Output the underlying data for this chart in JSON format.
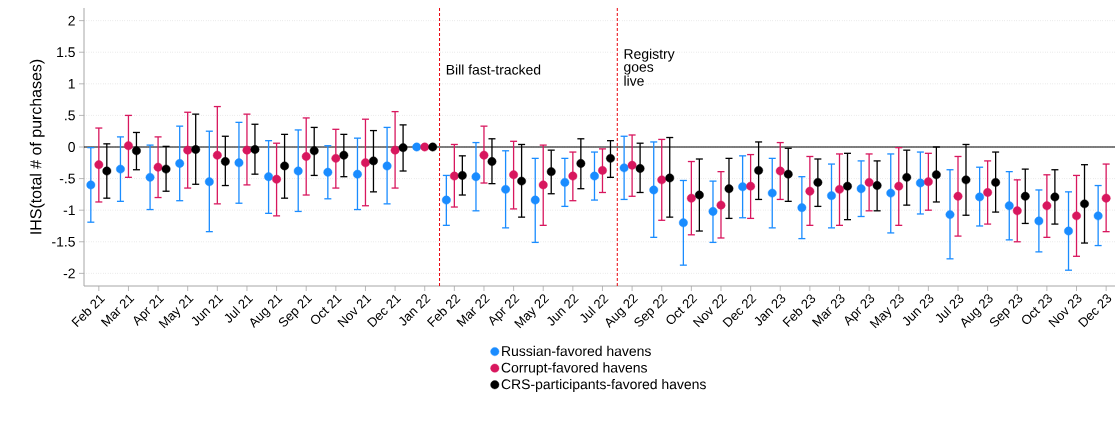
{
  "chart_data": {
    "type": "scatter",
    "ylabel": "IHS(total # of purchases)",
    "categories": [
      "Feb 21",
      "Mar 21",
      "Apr 21",
      "May 21",
      "Jun 21",
      "Jul 21",
      "Aug 21",
      "Sep 21",
      "Oct 21",
      "Nov 21",
      "Dec 21",
      "Jan 22",
      "Feb 22",
      "Mar 22",
      "Apr 22",
      "May 22",
      "Jun 22",
      "Jul 22",
      "Aug 22",
      "Sep 22",
      "Oct 22",
      "Nov 22",
      "Dec 22",
      "Jan 23",
      "Feb 23",
      "Mar 23",
      "Apr 23",
      "May 23",
      "Jun 23",
      "Jul 23",
      "Aug 23",
      "Sep 23",
      "Oct 23",
      "Nov 23",
      "Dec 23"
    ],
    "ylim": [
      -2.2,
      2.2
    ],
    "yticks": [
      -2,
      -1.5,
      -1,
      {
        "value": -0.5,
        "label": "-.5"
      },
      0,
      {
        "value": 0.5,
        "label": ".5"
      },
      1,
      1.5,
      2
    ],
    "grid": "y",
    "legend": "bottom",
    "marker": "circle",
    "ref_lines": [
      {
        "axis": "y",
        "value": 0,
        "color": "#000000",
        "line_style": "solid"
      }
    ],
    "annotations": [
      "Bill fast-tracked",
      "Registry goes live"
    ],
    "series": [
      {
        "name": "Russian-favored havens",
        "color": "#1a8cff",
        "values": [
          -0.6,
          -0.35,
          -0.48,
          -0.26,
          -0.55,
          -0.25,
          -0.47,
          -0.38,
          -0.4,
          -0.43,
          -0.3,
          0,
          -0.84,
          -0.47,
          -0.67,
          -0.84,
          -0.56,
          -0.46,
          -0.33,
          -0.68,
          -1.2,
          -1.02,
          -0.63,
          -0.73,
          -0.96,
          -0.77,
          -0.66,
          -0.73,
          -0.57,
          -1.07,
          -0.79,
          -0.93,
          -1.17,
          -1.33,
          -1.09
        ],
        "errors": [
          [
            -1.19,
            -0.01
          ],
          [
            -0.86,
            0.16
          ],
          [
            -0.99,
            0.03
          ],
          [
            -0.85,
            0.33
          ],
          [
            -1.34,
            0.25
          ],
          [
            -0.89,
            0.39
          ],
          [
            -1.05,
            0.1
          ],
          [
            -1.02,
            0.27
          ],
          [
            -0.82,
            0.02
          ],
          [
            -0.99,
            0.14
          ],
          [
            -0.9,
            0.31
          ],
          null,
          [
            -1.24,
            -0.45
          ],
          [
            -1.01,
            0.07
          ],
          [
            -1.28,
            -0.06
          ],
          [
            -1.51,
            -0.18
          ],
          [
            -0.94,
            -0.18
          ],
          [
            -0.84,
            -0.08
          ],
          [
            -0.83,
            0.17
          ],
          [
            -1.43,
            0.08
          ],
          [
            -1.87,
            -0.53
          ],
          [
            -1.51,
            -0.54
          ],
          [
            -1.12,
            -0.14
          ],
          [
            -1.28,
            -0.18
          ],
          [
            -1.45,
            -0.47
          ],
          [
            -1.28,
            -0.27
          ],
          [
            -1.1,
            -0.22
          ],
          [
            -1.36,
            -0.11
          ],
          [
            -1.06,
            -0.08
          ],
          [
            -1.77,
            -0.36
          ],
          [
            -1.25,
            -0.32
          ],
          [
            -1.47,
            -0.39
          ],
          [
            -1.66,
            -0.68
          ],
          [
            -1.95,
            -0.71
          ],
          [
            -1.56,
            -0.61
          ]
        ]
      },
      {
        "name": "Corrupt-favored havens",
        "color": "#d8175e",
        "values": [
          -0.28,
          0.02,
          -0.32,
          -0.05,
          -0.13,
          -0.05,
          -0.51,
          -0.15,
          -0.18,
          -0.25,
          -0.05,
          0,
          -0.46,
          -0.13,
          -0.44,
          -0.6,
          -0.46,
          -0.37,
          -0.29,
          -0.52,
          -0.81,
          -0.92,
          -0.62,
          -0.38,
          -0.7,
          -0.67,
          -0.56,
          -0.62,
          -0.55,
          -0.78,
          -0.72,
          -1.01,
          -0.93,
          -1.09,
          -0.81
        ],
        "errors": [
          [
            -0.87,
            0.3
          ],
          [
            -0.48,
            0.5
          ],
          [
            -0.8,
            0.16
          ],
          [
            -0.65,
            0.55
          ],
          [
            -0.9,
            0.64
          ],
          [
            -0.6,
            0.52
          ],
          [
            -1.09,
            0.06
          ],
          [
            -0.76,
            0.46
          ],
          [
            -0.65,
            0.28
          ],
          [
            -0.93,
            0.44
          ],
          [
            -0.65,
            0.56
          ],
          null,
          [
            -0.95,
            0.04
          ],
          [
            -0.57,
            0.33
          ],
          [
            -0.98,
            0.09
          ],
          [
            -1.24,
            0.03
          ],
          [
            -0.85,
            -0.08
          ],
          [
            -0.72,
            -0.03
          ],
          [
            -0.78,
            0.19
          ],
          [
            -1.16,
            0.12
          ],
          [
            -1.39,
            -0.23
          ],
          [
            -1.44,
            -0.39
          ],
          [
            -1.13,
            -0.12
          ],
          [
            -0.83,
            0.07
          ],
          [
            -1.24,
            -0.15
          ],
          [
            -1.24,
            -0.11
          ],
          [
            -1.01,
            -0.11
          ],
          [
            -1.24,
            -0.01
          ],
          [
            -1.0,
            -0.1
          ],
          [
            -1.41,
            -0.15
          ],
          [
            -1.22,
            -0.22
          ],
          [
            -1.5,
            -0.52
          ],
          [
            -1.43,
            -0.44
          ],
          [
            -1.73,
            -0.45
          ],
          [
            -1.34,
            -0.27
          ]
        ]
      },
      {
        "name": "CRS-participants-favored havens",
        "color": "#000000",
        "values": [
          -0.38,
          -0.06,
          -0.35,
          -0.04,
          -0.23,
          -0.04,
          -0.3,
          -0.06,
          -0.13,
          -0.22,
          -0.01,
          0,
          -0.45,
          -0.23,
          -0.54,
          -0.39,
          -0.26,
          -0.18,
          -0.34,
          -0.49,
          -0.76,
          -0.66,
          -0.37,
          -0.43,
          -0.56,
          -0.62,
          -0.61,
          -0.48,
          -0.44,
          -0.52,
          -0.56,
          -0.78,
          -0.79,
          -0.9,
          null
        ],
        "errors": [
          [
            -0.81,
            0.05
          ],
          [
            -0.36,
            0.23
          ],
          [
            -0.7,
            0.01
          ],
          [
            -0.59,
            0.52
          ],
          [
            -0.61,
            0.17
          ],
          [
            -0.43,
            0.36
          ],
          [
            -0.81,
            0.2
          ],
          [
            -0.45,
            0.31
          ],
          [
            -0.47,
            0.2
          ],
          [
            -0.71,
            0.26
          ],
          [
            -0.38,
            0.35
          ],
          null,
          [
            -0.76,
            -0.14
          ],
          [
            -0.58,
            0.13
          ],
          [
            -1.11,
            0.04
          ],
          [
            -0.74,
            -0.05
          ],
          [
            -0.66,
            0.13
          ],
          [
            -0.48,
            0.1
          ],
          [
            -0.72,
            0.06
          ],
          [
            -1.11,
            0.15
          ],
          [
            -1.33,
            -0.19
          ],
          [
            -1.13,
            -0.18
          ],
          [
            -0.83,
            0.08
          ],
          [
            -0.86,
            -0.02
          ],
          [
            -0.94,
            -0.19
          ],
          [
            -1.15,
            -0.1
          ],
          [
            -1.01,
            -0.22
          ],
          [
            -0.92,
            -0.05
          ],
          [
            -0.87,
            0.0
          ],
          [
            -1.08,
            0.04
          ],
          [
            -1.03,
            -0.08
          ],
          [
            -1.21,
            -0.35
          ],
          [
            -1.22,
            -0.36
          ],
          [
            -1.52,
            -0.28
          ],
          null
        ]
      }
    ]
  }
}
